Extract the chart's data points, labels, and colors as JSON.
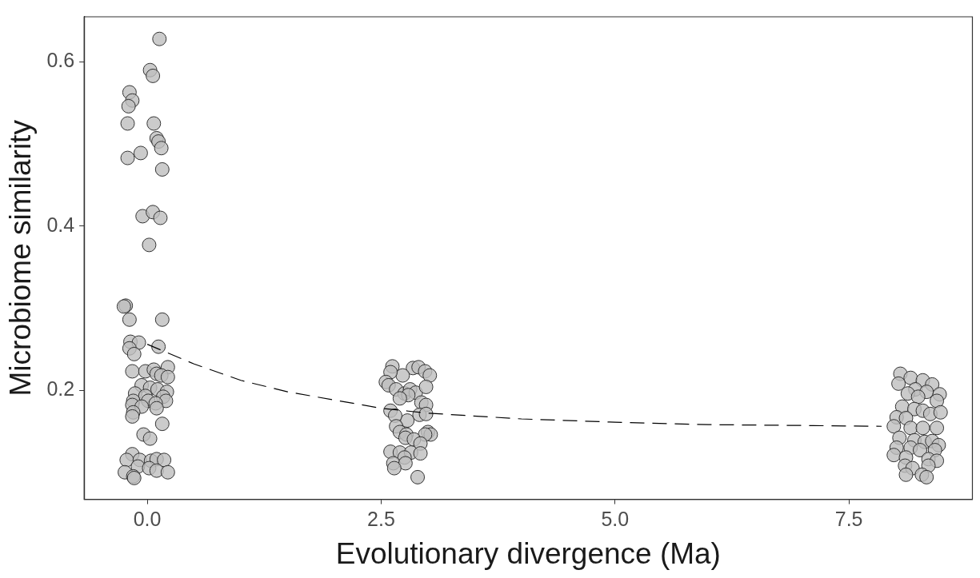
{
  "chart_data": {
    "type": "scatter",
    "xlabel": "Evolutionary divergence (Ma)",
    "ylabel": "Microbiome similarity",
    "xlim": [
      -0.675,
      8.82
    ],
    "ylim": [
      0.067,
      0.655
    ],
    "xticks": [
      {
        "value": 0,
        "label": "0.0"
      },
      {
        "value": 2.5,
        "label": "2.5"
      },
      {
        "value": 5,
        "label": "5.0"
      },
      {
        "value": 7.5,
        "label": "7.5"
      }
    ],
    "yticks": [
      {
        "value": 0.2,
        "label": "0.2"
      },
      {
        "value": 0.4,
        "label": "0.4"
      },
      {
        "value": 0.6,
        "label": "0.6"
      }
    ],
    "grid": false,
    "legend": false,
    "series": [
      {
        "color": "#bebebe",
        "marker": "circle",
        "x": [
          0.13,
          0.03,
          0.06,
          -0.19,
          -0.16,
          -0.2,
          -0.21,
          0.07,
          0.1,
          0.12,
          0.15,
          -0.21,
          -0.07,
          0.16,
          -0.05,
          0.06,
          0.14,
          0.02,
          -0.23,
          -0.25,
          -0.19,
          0.16,
          -0.18,
          -0.09,
          -0.19,
          -0.14,
          0.12,
          0.22,
          -0.16,
          -0.02,
          0.07,
          0.1,
          0.15,
          0.22,
          -0.06,
          0.03,
          0.11,
          0.21,
          -0.13,
          -0.02,
          0.17,
          -0.15,
          0.01,
          0.2,
          0.09,
          -0.16,
          -0.06,
          0.1,
          -0.15,
          -0.16,
          0.16,
          -0.04,
          0.03,
          -0.16,
          -0.22,
          -0.08,
          0.04,
          0.1,
          0.18,
          -0.1,
          0.02,
          0.1,
          -0.24,
          0.22,
          -0.15,
          -0.14,
          2.62,
          2.84,
          2.9,
          2.97,
          3.02,
          2.73,
          2.6,
          2.55,
          2.58,
          2.66,
          2.75,
          2.81,
          2.87,
          2.98,
          2.79,
          2.7,
          2.93,
          2.98,
          2.6,
          2.78,
          2.65,
          2.91,
          2.98,
          2.66,
          2.7,
          2.77,
          2.76,
          3.0,
          3.03,
          2.97,
          2.85,
          2.92,
          2.6,
          2.7,
          2.82,
          2.92,
          2.75,
          2.63,
          2.76,
          2.64,
          2.89,
          8.05,
          8.16,
          8.29,
          8.39,
          8.03,
          8.21,
          8.33,
          8.47,
          8.13,
          8.24,
          8.44,
          8.07,
          8.2,
          8.29,
          8.37,
          8.48,
          8.01,
          8.11,
          7.98,
          8.16,
          8.29,
          8.44,
          8.04,
          8.2,
          8.31,
          8.39,
          8.46,
          8.01,
          8.16,
          8.26,
          8.42,
          7.98,
          8.11,
          8.35,
          8.44,
          8.1,
          8.18,
          8.35,
          8.28,
          8.33,
          8.11
        ],
        "values": [
          0.628,
          0.59,
          0.583,
          0.563,
          0.553,
          0.546,
          0.525,
          0.525,
          0.507,
          0.503,
          0.495,
          0.483,
          0.489,
          0.469,
          0.412,
          0.417,
          0.41,
          0.377,
          0.303,
          0.302,
          0.286,
          0.286,
          0.259,
          0.258,
          0.251,
          0.244,
          0.253,
          0.228,
          0.223,
          0.223,
          0.225,
          0.22,
          0.218,
          0.216,
          0.206,
          0.203,
          0.201,
          0.198,
          0.196,
          0.193,
          0.192,
          0.187,
          0.187,
          0.187,
          0.184,
          0.182,
          0.18,
          0.178,
          0.173,
          0.168,
          0.159,
          0.146,
          0.141,
          0.122,
          0.115,
          0.115,
          0.114,
          0.116,
          0.115,
          0.107,
          0.105,
          0.102,
          0.1,
          0.1,
          0.095,
          0.093,
          0.229,
          0.227,
          0.228,
          0.223,
          0.218,
          0.218,
          0.222,
          0.21,
          0.206,
          0.201,
          0.196,
          0.201,
          0.197,
          0.204,
          0.194,
          0.19,
          0.185,
          0.182,
          0.175,
          0.163,
          0.169,
          0.17,
          0.171,
          0.156,
          0.149,
          0.146,
          0.142,
          0.149,
          0.146,
          0.146,
          0.14,
          0.135,
          0.125,
          0.124,
          0.124,
          0.123,
          0.118,
          0.111,
          0.111,
          0.105,
          0.094,
          0.22,
          0.215,
          0.212,
          0.207,
          0.208,
          0.201,
          0.198,
          0.195,
          0.196,
          0.192,
          0.187,
          0.18,
          0.177,
          0.175,
          0.171,
          0.173,
          0.167,
          0.166,
          0.156,
          0.154,
          0.154,
          0.154,
          0.142,
          0.139,
          0.137,
          0.138,
          0.133,
          0.13,
          0.13,
          0.127,
          0.127,
          0.121,
          0.118,
          0.116,
          0.114,
          0.108,
          0.105,
          0.108,
          0.097,
          0.094,
          0.097
        ]
      },
      {
        "type": "line",
        "color": "#000000",
        "marker": "none",
        "line_style": "dashed",
        "x": [
          0,
          0.5,
          1,
          1.5,
          2,
          2.5,
          3,
          4,
          5,
          6,
          7,
          7.85
        ],
        "values": [
          0.256,
          0.232,
          0.212,
          0.198,
          0.188,
          0.178,
          0.172,
          0.165,
          0.161,
          0.158,
          0.157,
          0.156
        ]
      }
    ]
  }
}
